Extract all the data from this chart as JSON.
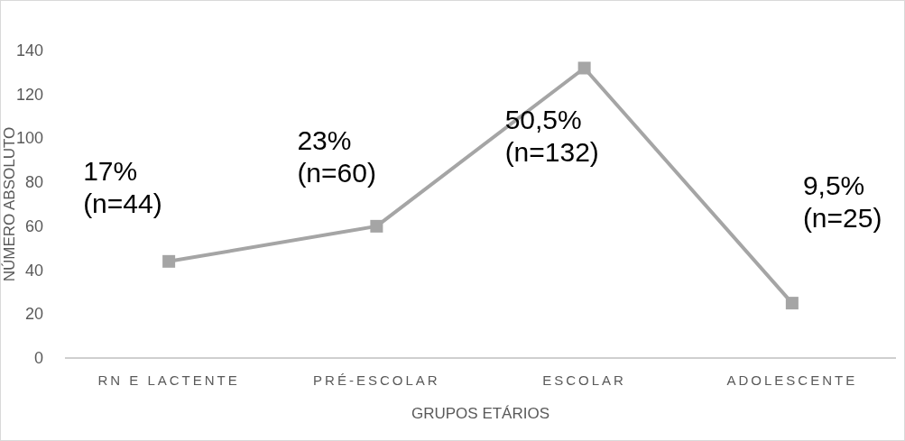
{
  "chart_data": {
    "type": "line",
    "xlabel": "GRUPOS ETÁRIOS",
    "ylabel": "NÚMERO ABSOLUTO",
    "categories": [
      "RN E LACTENTE",
      "PRÉ-ESCOLAR",
      "ESCOLAR",
      "ADOLESCENTE"
    ],
    "series": [
      {
        "color": "#a5a5a5",
        "values": [
          44,
          60,
          132,
          25
        ],
        "value_labels": [
          "17%\n(n=44)",
          "23%\n(n=60)",
          "50,5%\n(n=132)",
          "9,5%\n(n=25)"
        ]
      }
    ],
    "ylim": [
      0,
      140
    ],
    "yticks": [
      0,
      20,
      40,
      60,
      80,
      100,
      120,
      140
    ],
    "marker": "square",
    "line_style": "solid",
    "grid": false
  }
}
